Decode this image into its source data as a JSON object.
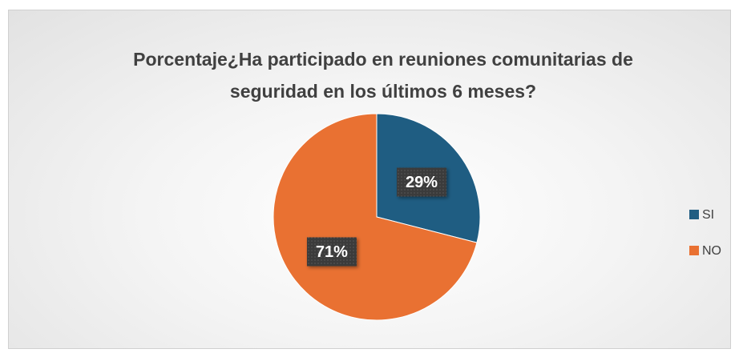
{
  "chart_data": {
    "type": "pie",
    "title": "Porcentaje¿Ha participado en reuniones comunitarias de seguridad en los últimos 6 meses?",
    "categories": [
      "SI",
      "NO"
    ],
    "values": [
      29,
      71
    ],
    "value_labels": [
      "29%",
      "71%"
    ],
    "colors": [
      "#1f5d82",
      "#e97132"
    ],
    "legend": "right"
  }
}
